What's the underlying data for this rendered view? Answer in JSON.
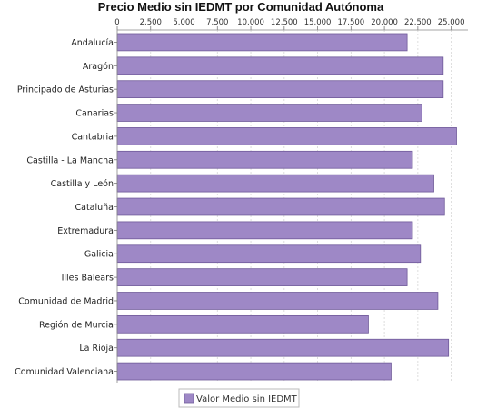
{
  "chart_data": {
    "type": "bar",
    "orientation": "horizontal",
    "title": "Precio Medio sin IEDMT por Comunidad Autónoma",
    "categories": [
      "Andalucía",
      "Aragón",
      "Principado de Asturias",
      "Canarias",
      "Cantabria",
      "Castilla - La Mancha",
      "Castilla y León",
      "Cataluña",
      "Extremadura",
      "Galicia",
      "Illes Balears",
      "Comunidad de Madrid",
      "Región de Murcia",
      "La Rioja",
      "Comunidad Valenciana"
    ],
    "series": [
      {
        "name": "Valor Medio sin IEDMT",
        "color": "#9e88c6",
        "values": [
          21700,
          24400,
          24400,
          22800,
          25400,
          22100,
          23700,
          24500,
          22100,
          22700,
          21700,
          24000,
          18800,
          24800,
          20500
        ]
      }
    ],
    "xticks": [
      "0",
      "2.500",
      "5.000",
      "7.500",
      "10.000",
      "12.500",
      "15.000",
      "17.500",
      "20.000",
      "22.500",
      "25.000"
    ],
    "xlim": [
      0,
      26250
    ],
    "xaxis_position": "top",
    "grid": true,
    "legend_position": "bottom-center"
  }
}
